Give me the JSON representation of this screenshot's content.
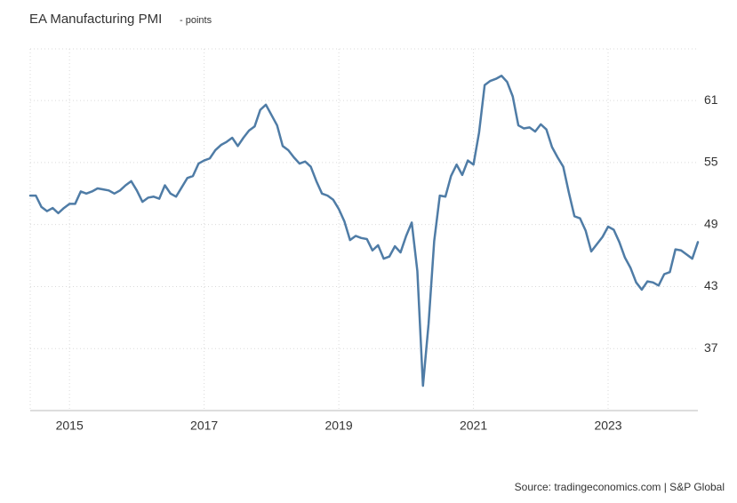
{
  "chart_data": {
    "type": "line",
    "title": "EA Manufacturing PMI",
    "subtitle": "- points",
    "source": "Source: tradingeconomics.com | S&P Global",
    "categories": [
      null,
      null,
      null,
      null,
      null,
      null,
      null,
      "2015",
      null,
      null,
      null,
      null,
      null,
      null,
      null,
      null,
      null,
      null,
      null,
      null,
      null,
      null,
      null,
      null,
      null,
      null,
      null,
      null,
      null,
      null,
      null,
      "2017",
      null,
      null,
      null,
      null,
      null,
      null,
      null,
      null,
      null,
      null,
      null,
      null,
      null,
      null,
      null,
      null,
      null,
      null,
      null,
      null,
      null,
      null,
      null,
      "2019",
      null,
      null,
      null,
      null,
      null,
      null,
      null,
      null,
      null,
      null,
      null,
      null,
      null,
      null,
      null,
      null,
      null,
      null,
      null,
      null,
      null,
      null,
      null,
      "2021",
      null,
      null,
      null,
      null,
      null,
      null,
      null,
      null,
      null,
      null,
      null,
      null,
      null,
      null,
      null,
      null,
      null,
      null,
      null,
      null,
      null,
      null,
      null,
      "2023",
      null,
      null,
      null,
      null,
      null,
      null,
      null,
      null,
      null,
      null,
      null,
      null,
      null,
      null,
      null,
      null
    ],
    "values": [
      51.8,
      51.8,
      50.7,
      50.3,
      50.6,
      50.1,
      50.6,
      51.0,
      51.0,
      52.2,
      52.0,
      52.2,
      52.5,
      52.4,
      52.3,
      52.0,
      52.3,
      52.8,
      53.2,
      52.3,
      51.2,
      51.6,
      51.7,
      51.5,
      52.8,
      52.0,
      51.7,
      52.6,
      53.5,
      53.7,
      54.9,
      55.2,
      55.4,
      56.2,
      56.7,
      57.0,
      57.4,
      56.6,
      57.4,
      58.1,
      58.5,
      60.1,
      60.6,
      59.6,
      58.6,
      56.6,
      56.2,
      55.5,
      54.9,
      55.1,
      54.6,
      53.2,
      52.0,
      51.8,
      51.4,
      50.5,
      49.3,
      47.5,
      47.9,
      47.7,
      47.6,
      46.5,
      47.0,
      45.7,
      45.9,
      46.9,
      46.3,
      47.9,
      49.2,
      44.5,
      33.4,
      39.4,
      47.4,
      51.8,
      51.7,
      53.7,
      54.8,
      53.8,
      55.2,
      54.8,
      57.9,
      62.5,
      62.9,
      63.1,
      63.4,
      62.8,
      61.4,
      58.6,
      58.3,
      58.4,
      58.0,
      58.7,
      58.2,
      56.5,
      55.5,
      54.6,
      52.1,
      49.8,
      49.6,
      48.4,
      46.4,
      47.1,
      47.8,
      48.8,
      48.5,
      47.3,
      45.8,
      44.8,
      43.4,
      42.7,
      43.5,
      43.4,
      43.1,
      44.2,
      44.4,
      46.6,
      46.5,
      46.1,
      45.7,
      47.3
    ],
    "color": "#4f7ca6",
    "ylim": [
      31,
      66
    ],
    "yticks": [
      37,
      43,
      49,
      55,
      61
    ],
    "grid": true
  }
}
